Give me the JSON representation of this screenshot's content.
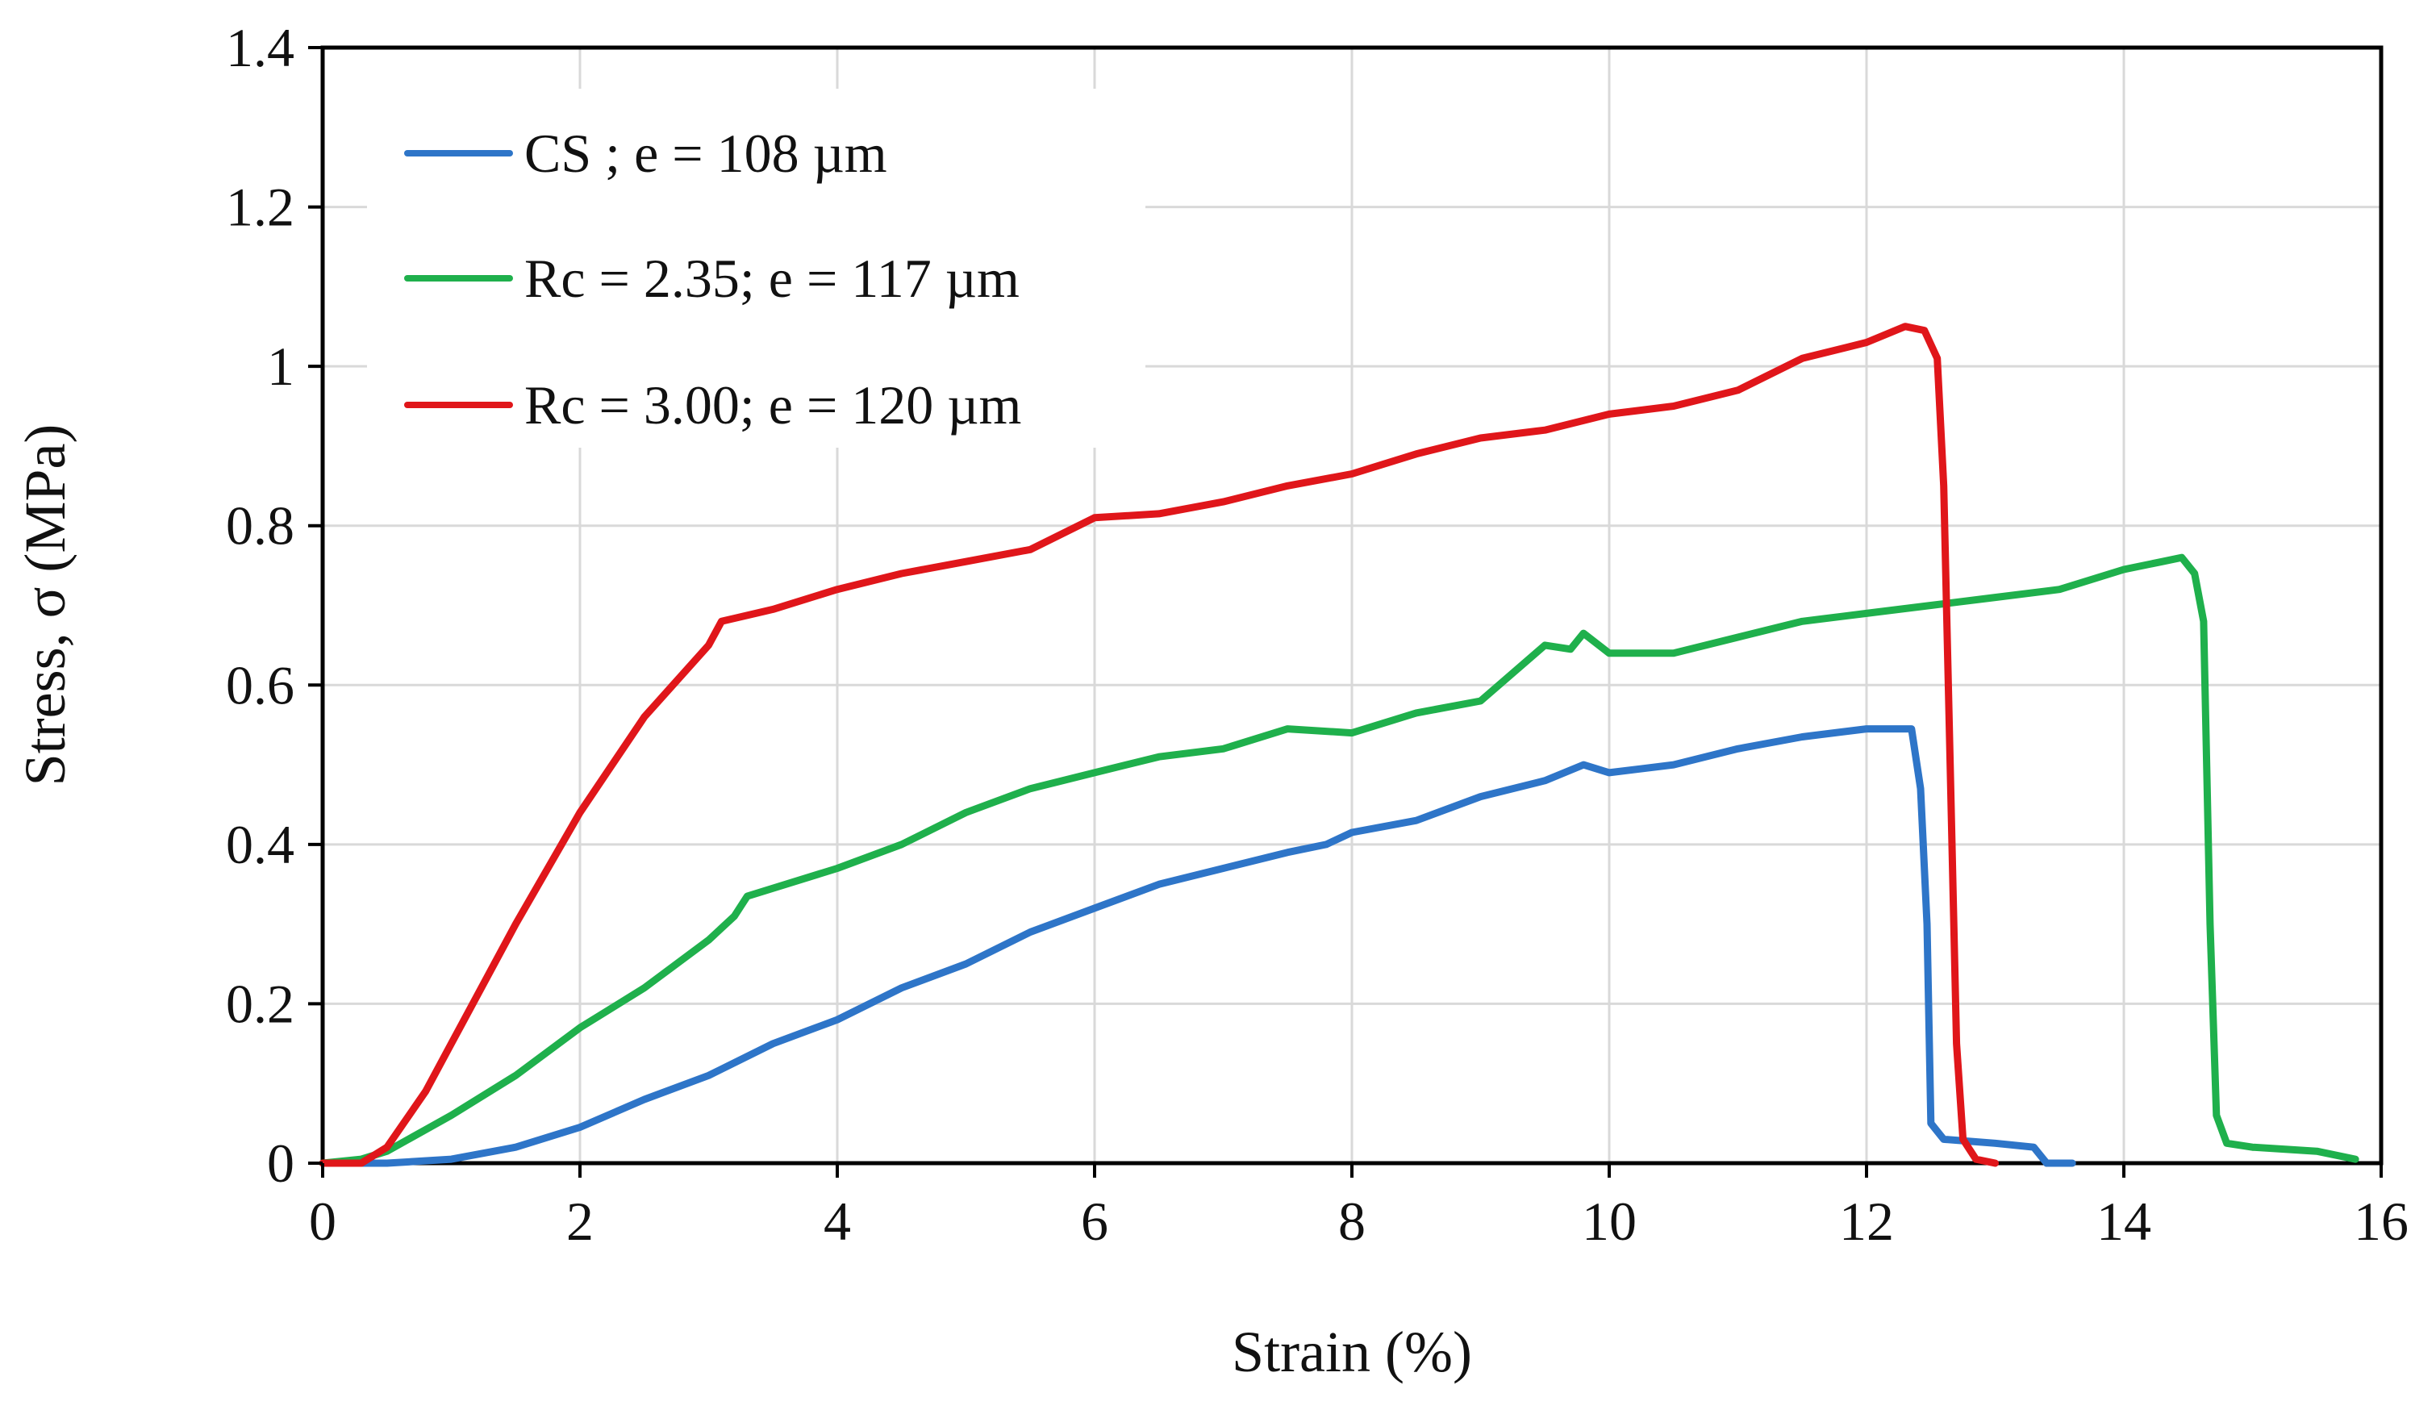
{
  "chart_data": {
    "type": "line",
    "title": "",
    "xlabel": "Strain (%)",
    "ylabel": "Stress, σ  (MPa)",
    "xlim": [
      0,
      16
    ],
    "ylim": [
      0,
      1.4
    ],
    "xticks": [
      0,
      2,
      4,
      6,
      8,
      10,
      12,
      14,
      16
    ],
    "yticks": [
      0,
      0.2,
      0.4,
      0.6,
      0.8,
      1,
      1.2,
      1.4
    ],
    "xtick_labels": [
      "0",
      "2",
      "4",
      "6",
      "8",
      "10",
      "12",
      "14",
      "16"
    ],
    "ytick_labels": [
      "0",
      "0.2",
      "0.4",
      "0.6",
      "0.8",
      "1",
      "1.2",
      "1.4"
    ],
    "grid": true,
    "legend_position": "top-left",
    "series": [
      {
        "name": "CS ; e = 108 µm",
        "color": "#2E75C8",
        "x": [
          0,
          0.5,
          1.0,
          1.5,
          2.0,
          2.5,
          3.0,
          3.5,
          4.0,
          4.5,
          5.0,
          5.5,
          6.0,
          6.5,
          7.0,
          7.5,
          7.8,
          8.0,
          8.5,
          9.0,
          9.5,
          9.8,
          10.0,
          10.5,
          11.0,
          11.5,
          12.0,
          12.2,
          12.35,
          12.42,
          12.47,
          12.5,
          12.6,
          13.0,
          13.3,
          13.4,
          13.6
        ],
        "y": [
          0,
          0.0,
          0.005,
          0.02,
          0.045,
          0.08,
          0.11,
          0.15,
          0.18,
          0.22,
          0.25,
          0.29,
          0.32,
          0.35,
          0.37,
          0.39,
          0.4,
          0.415,
          0.43,
          0.46,
          0.48,
          0.5,
          0.49,
          0.5,
          0.52,
          0.535,
          0.545,
          0.545,
          0.545,
          0.47,
          0.3,
          0.05,
          0.03,
          0.025,
          0.02,
          0.0,
          0.0
        ]
      },
      {
        "name": "Rc = 2.35; e = 117 µm",
        "color": "#1FB04C",
        "x": [
          0,
          0.3,
          0.5,
          1.0,
          1.5,
          2.0,
          2.5,
          3.0,
          3.2,
          3.3,
          4.0,
          4.5,
          5.0,
          5.5,
          6.0,
          6.5,
          7.0,
          7.5,
          8.0,
          8.5,
          9.0,
          9.5,
          9.7,
          9.8,
          10.0,
          10.5,
          11.0,
          11.5,
          12.0,
          12.5,
          13.0,
          13.5,
          14.0,
          14.3,
          14.45,
          14.55,
          14.62,
          14.67,
          14.72,
          14.8,
          15.0,
          15.5,
          15.8
        ],
        "y": [
          0,
          0.005,
          0.015,
          0.06,
          0.11,
          0.17,
          0.22,
          0.28,
          0.31,
          0.335,
          0.37,
          0.4,
          0.44,
          0.47,
          0.49,
          0.51,
          0.52,
          0.545,
          0.54,
          0.565,
          0.58,
          0.65,
          0.645,
          0.665,
          0.64,
          0.64,
          0.66,
          0.68,
          0.69,
          0.7,
          0.71,
          0.72,
          0.745,
          0.755,
          0.76,
          0.74,
          0.68,
          0.3,
          0.06,
          0.025,
          0.02,
          0.015,
          0.005
        ]
      },
      {
        "name": "Rc = 3.00; e = 120 µm",
        "color": "#E0161A",
        "x": [
          0,
          0.3,
          0.5,
          0.8,
          1.0,
          1.5,
          2.0,
          2.5,
          3.0,
          3.1,
          3.5,
          4.0,
          4.5,
          5.0,
          5.5,
          6.0,
          6.5,
          7.0,
          7.5,
          8.0,
          8.5,
          9.0,
          9.5,
          10.0,
          10.5,
          11.0,
          11.5,
          12.0,
          12.3,
          12.45,
          12.55,
          12.6,
          12.65,
          12.7,
          12.75,
          12.85,
          13.0
        ],
        "y": [
          0,
          0.0,
          0.02,
          0.09,
          0.15,
          0.3,
          0.44,
          0.56,
          0.65,
          0.68,
          0.695,
          0.72,
          0.74,
          0.755,
          0.77,
          0.81,
          0.815,
          0.83,
          0.85,
          0.865,
          0.89,
          0.91,
          0.92,
          0.94,
          0.95,
          0.97,
          1.01,
          1.03,
          1.05,
          1.045,
          1.01,
          0.85,
          0.5,
          0.15,
          0.03,
          0.005,
          0.0
        ]
      }
    ]
  }
}
